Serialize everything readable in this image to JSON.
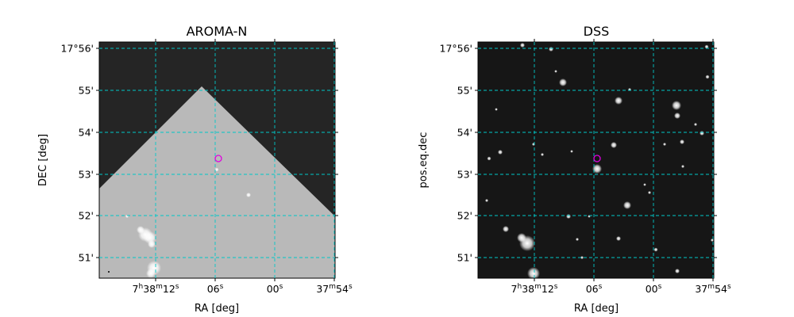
{
  "chart_data": [
    {
      "type": "image",
      "title": "AROMA-N",
      "xlabel": "RA [deg]",
      "ylabel": "DEC [deg]",
      "grid": true,
      "grid_color": "#00c8c8",
      "marker_color": "#e000e0",
      "x_ticks": [
        {
          "value": 114.55,
          "main": "7",
          "sup1": "h",
          "mid": "38",
          "sup2": "m",
          "tail": "12",
          "sup3": "s"
        },
        {
          "value": 114.525,
          "main": "",
          "sup1": "",
          "mid": "",
          "sup2": "",
          "tail": "06",
          "sup3": "s"
        },
        {
          "value": 114.5,
          "main": "",
          "sup1": "",
          "mid": "",
          "sup2": "",
          "tail": "00",
          "sup3": "s"
        },
        {
          "value": 114.475,
          "main": "37",
          "sup1": "m",
          "mid": "",
          "sup2": "",
          "tail": "54",
          "sup3": "s"
        }
      ],
      "y_ticks": [
        "17°56'",
        "55'",
        "54'",
        "53'",
        "52'",
        "51'"
      ],
      "marker": {
        "ra_label": "06s",
        "dec_label": "53.4'"
      }
    },
    {
      "type": "image",
      "title": "DSS",
      "xlabel": "RA [deg]",
      "ylabel": "pos.eq.dec",
      "grid": true,
      "grid_color": "#00c8c8",
      "marker_color": "#e000e0",
      "x_ticks": [
        {
          "value": 114.55,
          "main": "7",
          "sup1": "h",
          "mid": "38",
          "sup2": "m",
          "tail": "12",
          "sup3": "s"
        },
        {
          "value": 114.525,
          "main": "",
          "sup1": "",
          "mid": "",
          "sup2": "",
          "tail": "06",
          "sup3": "s"
        },
        {
          "value": 114.5,
          "main": "",
          "sup1": "",
          "mid": "",
          "sup2": "",
          "tail": "00",
          "sup3": "s"
        },
        {
          "value": 114.475,
          "main": "37",
          "sup1": "m",
          "mid": "",
          "sup2": "",
          "tail": "54",
          "sup3": "s"
        }
      ],
      "y_ticks": [
        "17°56'",
        "55'",
        "54'",
        "53'",
        "52'",
        "51'"
      ],
      "marker": {
        "ra_label": "06s",
        "dec_label": "53.4'"
      }
    }
  ]
}
